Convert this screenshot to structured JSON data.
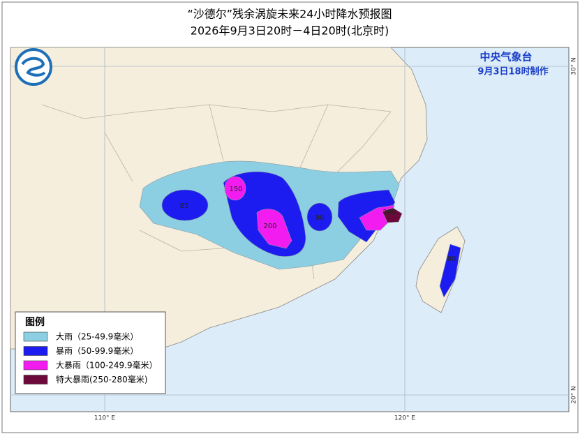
{
  "header": {
    "title": "“沙德尔”残余涡旋未来24小时降水预报图",
    "subtitle": "2026年9月3日20时－4日20时(北京时)"
  },
  "agency": {
    "name": "中央气象台",
    "issued": "9月3日18时制作"
  },
  "legend": {
    "title": "图例",
    "items": [
      {
        "label": "大雨（25-49.9毫米）",
        "color": "#8ccfe3"
      },
      {
        "label": "暴雨（50-99.9毫米）",
        "color": "#1c1cf0"
      },
      {
        "label": "大暴雨（100-249.9毫米）",
        "color": "#f21cf0"
      },
      {
        "label": "特大暴雨(250-280毫米)",
        "color": "#6b0a3a"
      }
    ]
  },
  "area_labels": [
    85,
    150,
    200,
    90,
    280,
    80
  ],
  "axes": {
    "x": [
      "110° E",
      "120° E"
    ],
    "y": [
      "30° N",
      "20° N"
    ]
  }
}
